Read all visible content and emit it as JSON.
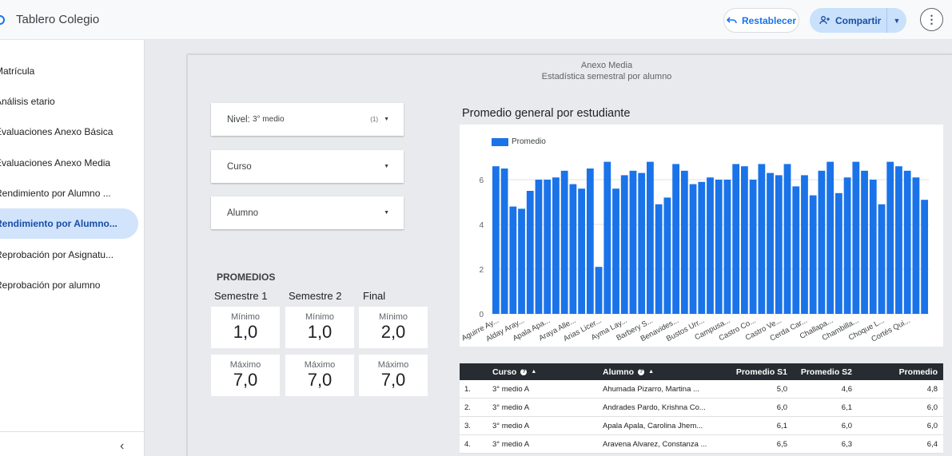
{
  "app": {
    "title": "Tablero Colegio",
    "reset_label": "Restablecer",
    "share_label": "Compartir"
  },
  "sidebar": {
    "items": [
      {
        "label": "Matrícula"
      },
      {
        "label": "Análisis etario"
      },
      {
        "label": "Evaluaciones Anexo Básica"
      },
      {
        "label": "Evaluaciones Anexo Media"
      },
      {
        "label": "Rendimiento por Alumno ..."
      },
      {
        "label": "Rendimiento por Alumno...",
        "active": true
      },
      {
        "label": "Reprobación por Asignatu..."
      },
      {
        "label": "Reprobación por alumno"
      }
    ]
  },
  "page": {
    "header_line1": "Anexo Media",
    "header_line2": "Estadística semestral por alumno"
  },
  "filters": {
    "nivel_label": "Nivel:",
    "nivel_value": "3° medio",
    "nivel_count": "(1)",
    "curso_label": "Curso",
    "alumno_label": "Alumno"
  },
  "promedios": {
    "title": "PROMEDIOS",
    "columns": [
      "Semestre 1",
      "Semestre 2",
      "Final"
    ],
    "min_label": "Mínimo",
    "max_label": "Máximo",
    "min_values": [
      "1,0",
      "1,0",
      "2,0"
    ],
    "max_values": [
      "7,0",
      "7,0",
      "7,0"
    ]
  },
  "chart_data": {
    "type": "bar",
    "title": "Promedio general por estudiante",
    "legend": [
      "Promedio"
    ],
    "color": "#1a73e8",
    "ylim": [
      0,
      7
    ],
    "yticks": [
      0,
      2,
      4,
      6
    ],
    "tick_labels": [
      "Aguirre Ay...",
      "Alday Aray...",
      "Apala Apa...",
      "Araya Alle...",
      "Arias Licer...",
      "Ayma Lay...",
      "Barbery S...",
      "Benavides...",
      "Bustos Urr...",
      "Campusa...",
      "Castro Co...",
      "Castro Ve...",
      "Cerda Car...",
      "Challapa...",
      "Chambilla...",
      "Choque L...",
      "Cortés Qui..."
    ],
    "values": [
      6.6,
      6.5,
      4.8,
      4.7,
      5.5,
      6.0,
      6.0,
      6.1,
      6.4,
      5.8,
      5.6,
      6.5,
      2.1,
      6.8,
      5.6,
      6.2,
      6.4,
      6.3,
      6.8,
      4.9,
      5.2,
      6.7,
      6.4,
      5.8,
      5.9,
      6.1,
      6.0,
      6.0,
      6.7,
      6.6,
      6.0,
      6.7,
      6.3,
      6.2,
      6.7,
      5.7,
      6.2,
      5.3,
      6.4,
      6.8,
      5.4,
      6.1,
      6.8,
      6.4,
      6.0,
      4.9,
      6.8,
      6.6,
      6.4,
      6.1,
      5.1
    ]
  },
  "table": {
    "headers": {
      "curso": "Curso",
      "alumno": "Alumno",
      "s1": "Promedio S1",
      "s2": "Promedio S2",
      "prom": "Promedio"
    },
    "rows": [
      {
        "n": "1.",
        "curso": "3° medio A",
        "alumno": "Ahumada Pizarro, Martina ...",
        "s1": "5,0",
        "s2": "4,6",
        "prom": "4,8"
      },
      {
        "n": "2.",
        "curso": "3° medio A",
        "alumno": "Andrades Pardo, Krishna Co...",
        "s1": "6,0",
        "s2": "6,1",
        "prom": "6,0"
      },
      {
        "n": "3.",
        "curso": "3° medio A",
        "alumno": "Apala Apala, Carolina Jhem...",
        "s1": "6,1",
        "s2": "6,0",
        "prom": "6,0"
      },
      {
        "n": "4.",
        "curso": "3° medio A",
        "alumno": "Aravena Alvarez, Constanza ...",
        "s1": "6,5",
        "s2": "6,3",
        "prom": "6,4"
      }
    ]
  }
}
